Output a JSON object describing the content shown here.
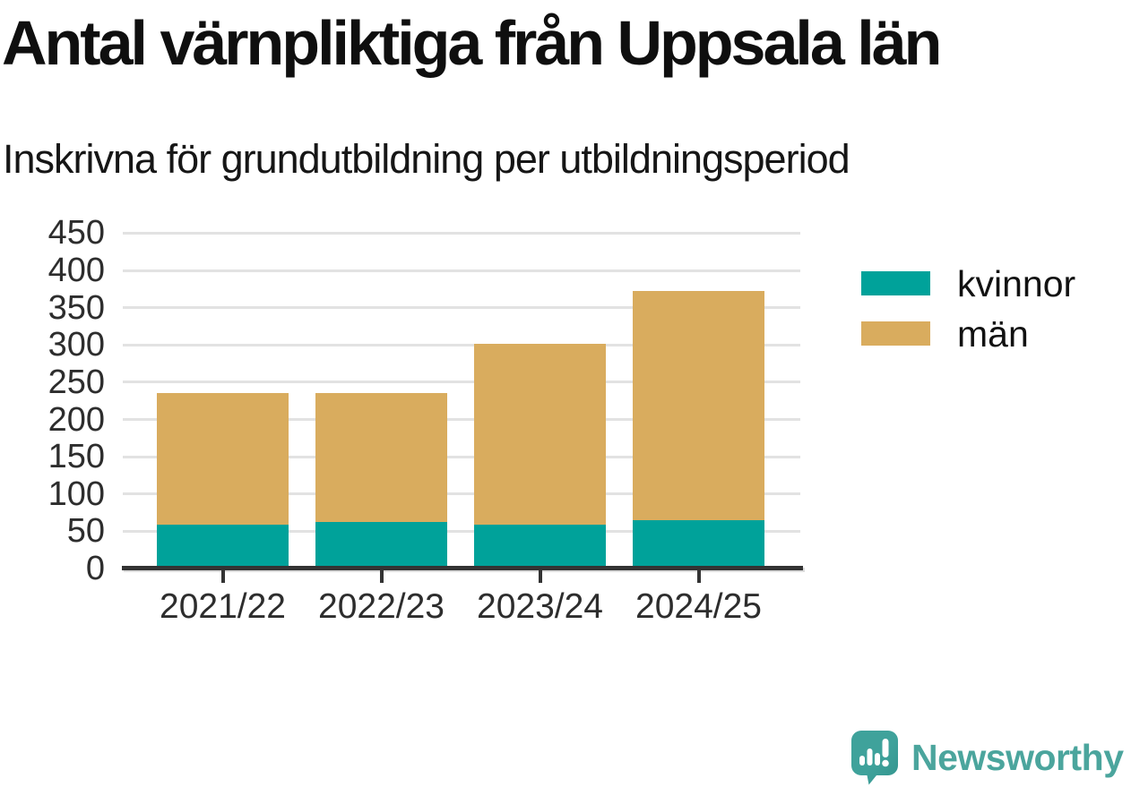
{
  "page": {
    "background": "#ffffff"
  },
  "chart_data": {
    "type": "bar",
    "stacked": true,
    "title": "Antal värnpliktiga från Uppsala län",
    "subtitle": "Inskrivna för grundutbildning per utbildningsperiod",
    "categories": [
      "2021/22",
      "2022/23",
      "2023/24",
      "2024/25"
    ],
    "series": [
      {
        "name": "kvinnor",
        "color": "#00a29a",
        "values": [
          59,
          62,
          59,
          65
        ]
      },
      {
        "name": "män",
        "color": "#d9ac5e",
        "values": [
          176,
          173,
          242,
          307
        ]
      }
    ],
    "stack_totals": [
      235,
      235,
      301,
      372
    ],
    "xlabel": "",
    "ylabel": "",
    "ylim": [
      0,
      450
    ],
    "yticks": [
      0,
      50,
      100,
      150,
      200,
      250,
      300,
      350,
      400,
      450
    ],
    "grid": "horizontal",
    "legend_position": "right",
    "colors": {
      "grid": "#e2e2e2",
      "axis": "#333333",
      "tick_label": "#2d2d2d"
    }
  },
  "logo": {
    "text": "Newsworthy",
    "color": "#4ba59d",
    "icon": "speech-bubble-with-bar-chart-and-exclamation"
  }
}
